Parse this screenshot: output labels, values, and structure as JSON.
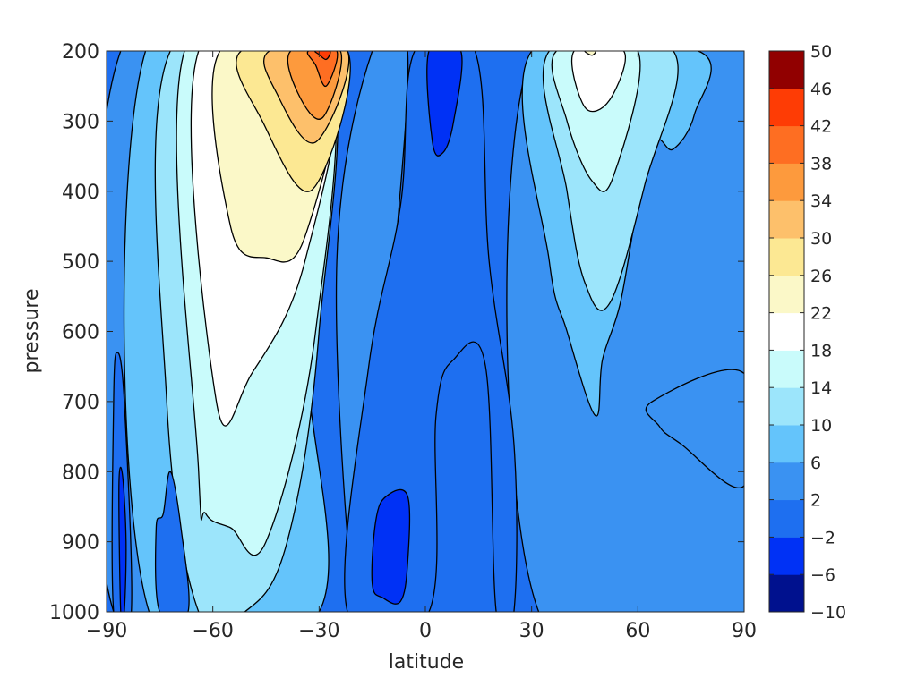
{
  "chart_data": {
    "type": "contour",
    "title": "",
    "xlabel": "latitude",
    "ylabel": "pressure",
    "xlim": [
      -90,
      90
    ],
    "ylim": [
      1000,
      200
    ],
    "y_direction": "reversed",
    "x_ticks": [
      -90,
      -60,
      -30,
      0,
      30,
      60,
      90
    ],
    "x_tick_labels": [
      "−90",
      "−60",
      "−30",
      "0",
      "30",
      "60",
      "90"
    ],
    "y_ticks": [
      200,
      300,
      400,
      500,
      600,
      700,
      800,
      900,
      1000
    ],
    "y_tick_labels": [
      "200",
      "300",
      "400",
      "500",
      "600",
      "700",
      "800",
      "900",
      "1000"
    ],
    "grid": false,
    "contour_line_color": "#000000",
    "colorbar": {
      "position": "right",
      "levels": [
        -10,
        -6,
        -2,
        2,
        6,
        10,
        14,
        18,
        22,
        26,
        30,
        34,
        38,
        42,
        46,
        50
      ],
      "tick_labels": [
        "−10",
        "−6",
        "−2",
        "2",
        "6",
        "10",
        "14",
        "18",
        "22",
        "26",
        "30",
        "34",
        "38",
        "42",
        "46",
        "50"
      ],
      "colors": [
        "#00118e",
        "#0031f5",
        "#1e6ff0",
        "#3a92f2",
        "#64c4fb",
        "#9ce5fb",
        "#c9fbfb",
        "#ffffff",
        "#fbf8c8",
        "#fce893",
        "#fdc06b",
        "#fd9a3d",
        "#fe6e22",
        "#fe3c05",
        "#910000"
      ]
    },
    "background_level_color": "#1e6ff0",
    "regions": [
      {
        "level": 2,
        "points": [
          [
            -88,
            1000
          ],
          [
            -86,
            200
          ],
          [
            -30,
            200
          ],
          [
            -50,
            600
          ],
          [
            -36,
            1000
          ]
        ]
      },
      {
        "level": 6,
        "points": [
          [
            -78,
            1000
          ],
          [
            -79,
            200
          ],
          [
            -30,
            200
          ],
          [
            -34,
            600
          ],
          [
            -30,
            1000
          ]
        ]
      },
      {
        "level": 10,
        "points": [
          [
            -64,
            1000
          ],
          [
            -73,
            700
          ],
          [
            -72,
            200
          ],
          [
            -28,
            200
          ],
          [
            -30,
            600
          ],
          [
            -39,
            900
          ],
          [
            -51,
            1000
          ]
        ]
      },
      {
        "level": 14,
        "points": [
          [
            -64,
            800
          ],
          [
            -68,
            200
          ],
          [
            -28,
            200
          ],
          [
            -31,
            600
          ],
          [
            -45,
            900
          ],
          [
            -55,
            880
          ],
          [
            -62,
            860
          ]
        ]
      },
      {
        "level": 18,
        "points": [
          [
            -59,
            700
          ],
          [
            -64,
            200
          ],
          [
            -26,
            200
          ],
          [
            -34,
            500
          ],
          [
            -49,
            660
          ]
        ]
      },
      {
        "level": 22,
        "points": [
          [
            -55,
            450
          ],
          [
            -58,
            200
          ],
          [
            -25,
            200
          ],
          [
            -34,
            465
          ],
          [
            -45,
            495
          ]
        ]
      },
      {
        "level": 26,
        "points": [
          [
            -46,
            300
          ],
          [
            -52,
            200
          ],
          [
            -22,
            200
          ],
          [
            -32,
            398
          ]
        ]
      },
      {
        "level": 30,
        "points": [
          [
            -42,
            260
          ],
          [
            -44,
            200
          ],
          [
            -22,
            200
          ],
          [
            -31,
            330
          ]
        ]
      },
      {
        "level": 34,
        "points": [
          [
            -36,
            260
          ],
          [
            -38,
            200
          ],
          [
            -24,
            200
          ],
          [
            -29,
            295
          ]
        ]
      },
      {
        "level": 38,
        "points": [
          [
            -31,
            220
          ],
          [
            -33,
            200
          ],
          [
            -25,
            200
          ],
          [
            -28,
            250
          ]
        ]
      },
      {
        "level": 42,
        "points": [
          [
            -30,
            205
          ],
          [
            -31,
            200
          ],
          [
            -27,
            200
          ],
          [
            -28,
            212
          ]
        ]
      },
      {
        "level": 2,
        "points": [
          [
            32,
            1000
          ],
          [
            30,
            200
          ],
          [
            90,
            200
          ],
          [
            90,
            1000
          ]
        ]
      },
      {
        "level": 2,
        "points": [
          [
            -20,
            1000
          ],
          [
            -25,
            500
          ],
          [
            -15,
            200
          ],
          [
            -5,
            200
          ],
          [
            -10,
            600
          ],
          [
            -13,
            1000
          ]
        ]
      },
      {
        "level": 6,
        "points": [
          [
            35,
            500
          ],
          [
            30,
            200
          ],
          [
            77,
            200
          ],
          [
            76,
            290
          ],
          [
            70,
            340
          ],
          [
            65,
            330
          ],
          [
            60,
            420
          ],
          [
            55,
            560
          ],
          [
            50,
            640
          ],
          [
            48,
            720
          ],
          [
            40,
            600
          ]
        ]
      },
      {
        "level": 10,
        "points": [
          [
            40,
            400
          ],
          [
            35,
            200
          ],
          [
            70,
            200
          ],
          [
            62,
            390
          ],
          [
            52,
            560
          ],
          [
            45,
            530
          ]
        ]
      },
      {
        "level": 14,
        "points": [
          [
            40,
            300
          ],
          [
            37,
            200
          ],
          [
            60,
            200
          ],
          [
            53,
            380
          ],
          [
            47,
            385
          ]
        ]
      },
      {
        "level": 18,
        "points": [
          [
            42,
            200
          ],
          [
            56,
            200
          ],
          [
            52,
            270
          ],
          [
            45,
            280
          ]
        ]
      },
      {
        "level": 22,
        "points": [
          [
            45,
            200
          ],
          [
            48,
            200
          ],
          [
            47,
            206
          ]
        ]
      },
      {
        "level": 2,
        "points": [
          [
            64,
            700
          ],
          [
            90,
            660
          ],
          [
            90,
            820
          ],
          [
            72,
            760
          ],
          [
            66,
            735
          ]
        ]
      },
      {
        "level": -2,
        "points": [
          [
            -22,
            1000
          ],
          [
            -16,
            650
          ],
          [
            -7,
            420
          ],
          [
            -3,
            200
          ],
          [
            14,
            200
          ],
          [
            18,
            500
          ],
          [
            25,
            760
          ],
          [
            25,
            1000
          ],
          [
            20,
            1000
          ],
          [
            17,
            650
          ],
          [
            8,
            640
          ],
          [
            3,
            720
          ],
          [
            1,
            1000
          ]
        ]
      },
      {
        "level": -6,
        "points": [
          [
            -15,
            960
          ],
          [
            -14,
            870
          ],
          [
            -11,
            835
          ],
          [
            -5,
            835
          ],
          [
            -5,
            930
          ],
          [
            -7,
            985
          ],
          [
            -12,
            980
          ]
        ]
      },
      {
        "level": -6,
        "points": [
          [
            1,
            200
          ],
          [
            10,
            200
          ],
          [
            8,
            300
          ],
          [
            5,
            345
          ],
          [
            2,
            330
          ]
        ]
      },
      {
        "level": -2,
        "points": [
          [
            -75,
            1000
          ],
          [
            -76,
            880
          ],
          [
            -74,
            860
          ],
          [
            -72,
            800
          ],
          [
            -69,
            880
          ],
          [
            -67,
            1000
          ]
        ]
      },
      {
        "level": -2,
        "points": [
          [
            -88,
            1000
          ],
          [
            -88,
            700
          ],
          [
            -87,
            630
          ],
          [
            -85,
            700
          ],
          [
            -83,
            1000
          ]
        ]
      },
      {
        "level": -6,
        "points": [
          [
            -86,
            1000
          ],
          [
            -86.5,
            820
          ],
          [
            -85.5,
            805
          ],
          [
            -84.5,
            900
          ],
          [
            -85,
            1000
          ]
        ]
      }
    ]
  }
}
